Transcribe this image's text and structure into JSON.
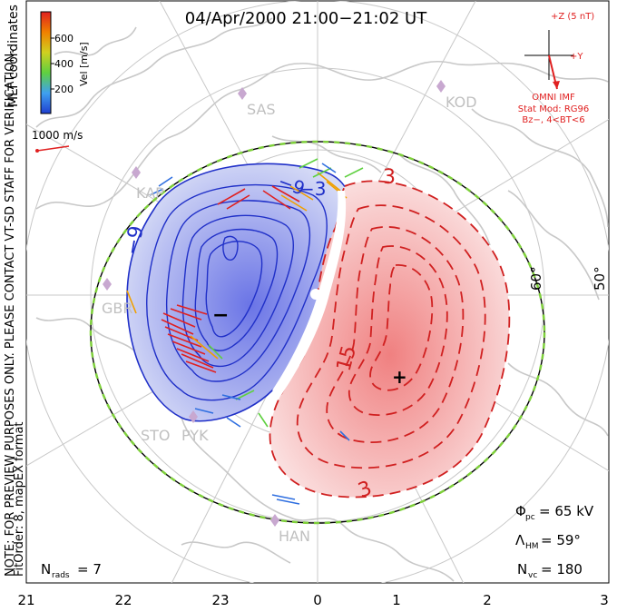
{
  "title": "04/Apr/2000 21:00−21:02 UT",
  "colorbar": {
    "title": "Vel [m/s]",
    "ticks": [
      "200",
      "400",
      "600"
    ],
    "colors": [
      "#1f3fd0",
      "#2f6fe0",
      "#3fa0f0",
      "#40c8c0",
      "#5fd040",
      "#b0d020",
      "#f0c000",
      "#f08000",
      "#e02020"
    ]
  },
  "side_labels": {
    "coordinates": "MLT coordinates",
    "note": "NOTE: FOR PREVIEW PURPOSES ONLY. PLEASE CONTACT VT-SD STAFF FOR VERIFICATION.",
    "fit_order": "FitOrder: 8, mapEX format"
  },
  "scale_vector": {
    "label": "1000 m/s"
  },
  "imf": {
    "z_label": "+Z (5 nT)",
    "y_label": "+Y",
    "source": "OMNI IMF",
    "stat_mod": "Stat Mod: RG96",
    "condition": "Bz−, 4<BT<6"
  },
  "stations": [
    "SAS",
    "KOD",
    "KAP",
    "GBR",
    "STO",
    "PYK",
    "HAN"
  ],
  "latitude_labels": [
    "60°",
    "50°"
  ],
  "contour_labels": [
    "−9",
    "−9",
    "−3",
    "3",
    "15",
    "3"
  ],
  "extrema": {
    "min": "−",
    "max": "+"
  },
  "stats": {
    "phi_pc": "Φ",
    "phi_sub": "pc",
    "phi_value": "= 65 kV",
    "lambda": "Λ",
    "lambda_sub": "HM",
    "lambda_value": "= 59°",
    "nvc": "N",
    "nvc_sub": "vc",
    "nvc_value": "= 180"
  },
  "nrads": {
    "label": "N",
    "sub": "rads",
    "value": "= 7"
  },
  "mlt_axis": [
    "21",
    "22",
    "23",
    "0",
    "1",
    "2",
    "3"
  ],
  "colors": {
    "negative_cell": "#3040d0",
    "positive_cell": "#e03030",
    "boundary_green": "#7ed03a",
    "map_lines": "#c8c8c8"
  }
}
